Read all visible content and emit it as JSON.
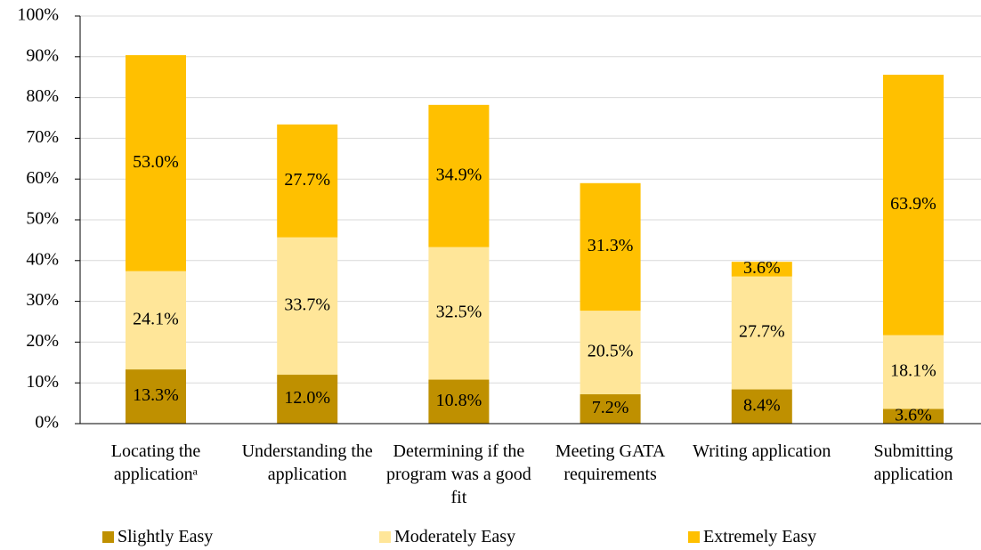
{
  "chart_data": {
    "type": "stacked_bar",
    "categories": [
      "Locating the applicationᵃ",
      "Understanding the application",
      "Determining if the program was a good fit",
      "Meeting GATA requirements",
      "Writing application",
      "Submitting application"
    ],
    "series": [
      {
        "name": "Slightly Easy",
        "color": "#bf9000",
        "values": [
          13.3,
          12.0,
          10.8,
          7.2,
          8.4,
          3.6
        ],
        "value_labels": [
          "13.3%",
          "12.0%",
          "10.8%",
          "7.2%",
          "8.4%",
          "3.6%"
        ]
      },
      {
        "name": "Moderately Easy",
        "color": "#ffe699",
        "values": [
          24.1,
          33.7,
          32.5,
          20.5,
          27.7,
          18.1
        ],
        "value_labels": [
          "24.1%",
          "33.7%",
          "32.5%",
          "20.5%",
          "27.7%",
          "18.1%"
        ]
      },
      {
        "name": "Extremely Easy",
        "color": "#ffc000",
        "values": [
          53.0,
          27.7,
          34.9,
          31.3,
          3.6,
          63.9
        ],
        "value_labels": [
          "53.0%",
          "27.7%",
          "34.9%",
          "31.3%",
          "3.6%",
          "63.9%"
        ]
      }
    ],
    "ylim": [
      0,
      100
    ],
    "yticks": [
      {
        "value": 0,
        "label": "0%"
      },
      {
        "value": 10,
        "label": "10%"
      },
      {
        "value": 20,
        "label": "20%"
      },
      {
        "value": 30,
        "label": "30%"
      },
      {
        "value": 40,
        "label": "40%"
      },
      {
        "value": 50,
        "label": "50%"
      },
      {
        "value": 60,
        "label": "60%"
      },
      {
        "value": 70,
        "label": "70%"
      },
      {
        "value": 80,
        "label": "80%"
      },
      {
        "value": 90,
        "label": "90%"
      },
      {
        "value": 100,
        "label": "100%"
      }
    ],
    "grid": true,
    "legend": "bottom"
  }
}
